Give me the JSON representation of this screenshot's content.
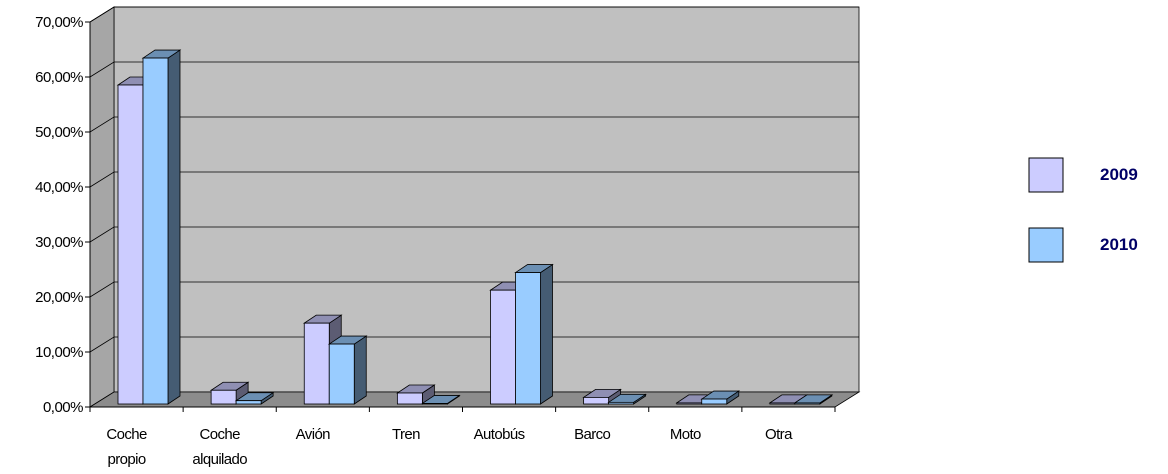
{
  "chart_data": {
    "type": "bar",
    "categories": [
      [
        "Coche",
        "propio"
      ],
      [
        "Coche",
        "alquilado"
      ],
      [
        "Avión"
      ],
      [
        "Tren"
      ],
      [
        "Autobús"
      ],
      [
        "Barco"
      ],
      [
        "Moto"
      ],
      [
        "Otra"
      ]
    ],
    "series": [
      {
        "name": "2009",
        "values": [
          58.0,
          2.5,
          14.7,
          2.0,
          20.7,
          1.2,
          0.2,
          0.2
        ],
        "color": "#ccccff"
      },
      {
        "name": "2010",
        "values": [
          62.9,
          0.6,
          10.9,
          0.1,
          23.9,
          0.3,
          0.9,
          0.2
        ],
        "color": "#99ccff"
      }
    ],
    "y_ticks": [
      "0,00%",
      "10,00%",
      "20,00%",
      "30,00%",
      "40,00%",
      "50,00%",
      "60,00%",
      "70,00%"
    ],
    "ylim": [
      0,
      70
    ],
    "grid": true,
    "legend_position": "right",
    "plot_color": "#c0c0c0"
  }
}
